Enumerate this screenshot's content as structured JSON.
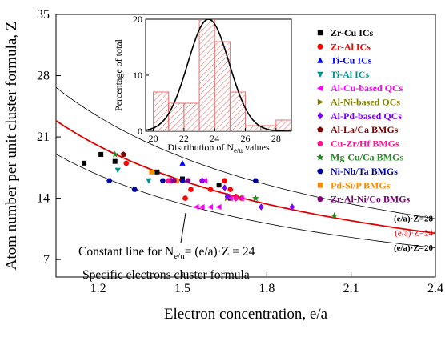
{
  "chart_data": [
    {
      "type": "scatter",
      "xlabel": "Electron concentration, e/a",
      "ylabel": "Atom number per unit cluster formula, Z",
      "xlim": [
        1.05,
        2.4
      ],
      "ylim": [
        5,
        35
      ],
      "xticks": [
        "1.2",
        "1.5",
        "1.8",
        "2.1",
        "2.4"
      ],
      "yticks": [
        "7",
        "14",
        "21",
        "28",
        "35"
      ],
      "legend_position": "right",
      "annotations": {
        "constant_line_prefix": "Constant line for N",
        "constant_line_sub": "e/u",
        "constant_line_suffix": "= (e/a)·Z = 24",
        "formula_label": "Specific electrons cluster formula"
      },
      "curves": [
        {
          "label": "(e/a)·Z=28",
          "k": 28,
          "color": "#000000",
          "width": 0.8
        },
        {
          "label": "(e/a)·Z=24",
          "k": 24,
          "color": "#e00000",
          "width": 1.8
        },
        {
          "label": "(e/a)·Z=20",
          "k": 20,
          "color": "#000000",
          "width": 0.8
        }
      ],
      "series": [
        {
          "name": "Zr-Cu ICs",
          "color": "#000000",
          "marker": "square",
          "points": [
            [
              1.15,
              18
            ],
            [
              1.21,
              19
            ],
            [
              1.26,
              18.2
            ],
            [
              1.41,
              17
            ],
            [
              1.5,
              16.2
            ],
            [
              1.63,
              15.5
            ],
            [
              1.67,
              14
            ]
          ]
        },
        {
          "name": "Zr-Al ICs",
          "color": "#ff0000",
          "marker": "circle",
          "points": [
            [
              1.3,
              18
            ],
            [
              1.48,
              16
            ],
            [
              1.53,
              15
            ],
            [
              1.57,
              16
            ],
            [
              1.6,
              15
            ],
            [
              1.65,
              16
            ],
            [
              1.67,
              15
            ],
            [
              1.71,
              14
            ],
            [
              1.51,
              14
            ],
            [
              1.69,
              14.2
            ]
          ]
        },
        {
          "name": "Ti-Cu ICs",
          "color": "#0000ff",
          "marker": "triangle-up",
          "points": [
            [
              1.5,
              18
            ]
          ]
        },
        {
          "name": "Ti-Al ICs",
          "color": "#009090",
          "marker": "triangle-down",
          "points": [
            [
              1.27,
              17.2
            ],
            [
              1.38,
              16
            ],
            [
              1.5,
              16
            ]
          ]
        },
        {
          "name": "Al-Cu-based QCs",
          "color": "#ff00ff",
          "marker": "triangle-left",
          "points": [
            [
              1.55,
              13
            ],
            [
              1.57,
              13
            ],
            [
              1.6,
              13
            ],
            [
              1.63,
              13
            ],
            [
              1.67,
              14
            ],
            [
              1.71,
              14
            ],
            [
              1.58,
              16
            ]
          ]
        },
        {
          "name": "Al-Ni-based QCs",
          "color": "#808000",
          "marker": "triangle-right",
          "points": [
            [
              1.66,
              14
            ]
          ]
        },
        {
          "name": "Al-Pd-based QCs",
          "color": "#8000ff",
          "marker": "diamond",
          "points": [
            [
              1.46,
              16
            ],
            [
              1.57,
              16
            ],
            [
              1.65,
              15.2
            ],
            [
              1.66,
              14.2
            ],
            [
              1.78,
              13
            ],
            [
              1.89,
              13
            ],
            [
              1.69,
              14
            ]
          ]
        },
        {
          "name": "Al-La/Ca BMGs",
          "color": "#800000",
          "marker": "pentagon",
          "points": [
            [
              1.29,
              19
            ]
          ]
        },
        {
          "name": "Cu-Zr/Hf BMGs",
          "color": "#ff1493",
          "marker": "circle",
          "points": [
            [
              1.45,
              16
            ],
            [
              1.69,
              14
            ]
          ]
        },
        {
          "name": "Mg-Cu/Ca BMGs",
          "color": "#228b22",
          "marker": "star",
          "points": [
            [
              1.26,
              19
            ],
            [
              1.76,
              14
            ],
            [
              2.04,
              12
            ]
          ]
        },
        {
          "name": "Ni-Nb/Ta BMGs",
          "color": "#0000a0",
          "marker": "hexagon",
          "points": [
            [
              1.24,
              16
            ],
            [
              1.33,
              15
            ],
            [
              1.43,
              16
            ],
            [
              1.5,
              16
            ],
            [
              1.76,
              16
            ]
          ]
        },
        {
          "name": "Pd-Si/P BMGs",
          "color": "#ff8c00",
          "marker": "square",
          "points": [
            [
              1.39,
              17
            ],
            [
              1.48,
              16
            ]
          ]
        },
        {
          "name": "Zr-Al-Ni/Co BMGs",
          "color": "#800080",
          "marker": "circle",
          "points": [
            [
              1.47,
              16
            ],
            [
              1.52,
              16
            ]
          ]
        }
      ]
    },
    {
      "type": "bar",
      "xlabel_prefix": "Distribution of N",
      "xlabel_sub": "e/u",
      "xlabel_suffix": " values",
      "ylabel": "Percentage of total",
      "xlim": [
        19.5,
        29
      ],
      "ylim": [
        0,
        20
      ],
      "xticks": [
        "20",
        "22",
        "24",
        "26",
        "28"
      ],
      "yticks": [
        "0",
        "10",
        "20"
      ],
      "bin_width": 1,
      "bins": [
        [
          20,
          7
        ],
        [
          21,
          5
        ],
        [
          22,
          5
        ],
        [
          23,
          21
        ],
        [
          24,
          16
        ],
        [
          25,
          7
        ],
        [
          26,
          1
        ],
        [
          27,
          1
        ],
        [
          28,
          2
        ]
      ],
      "normal_fit": {
        "mean": 23.6,
        "sd": 1.35,
        "peak": 20
      }
    }
  ]
}
